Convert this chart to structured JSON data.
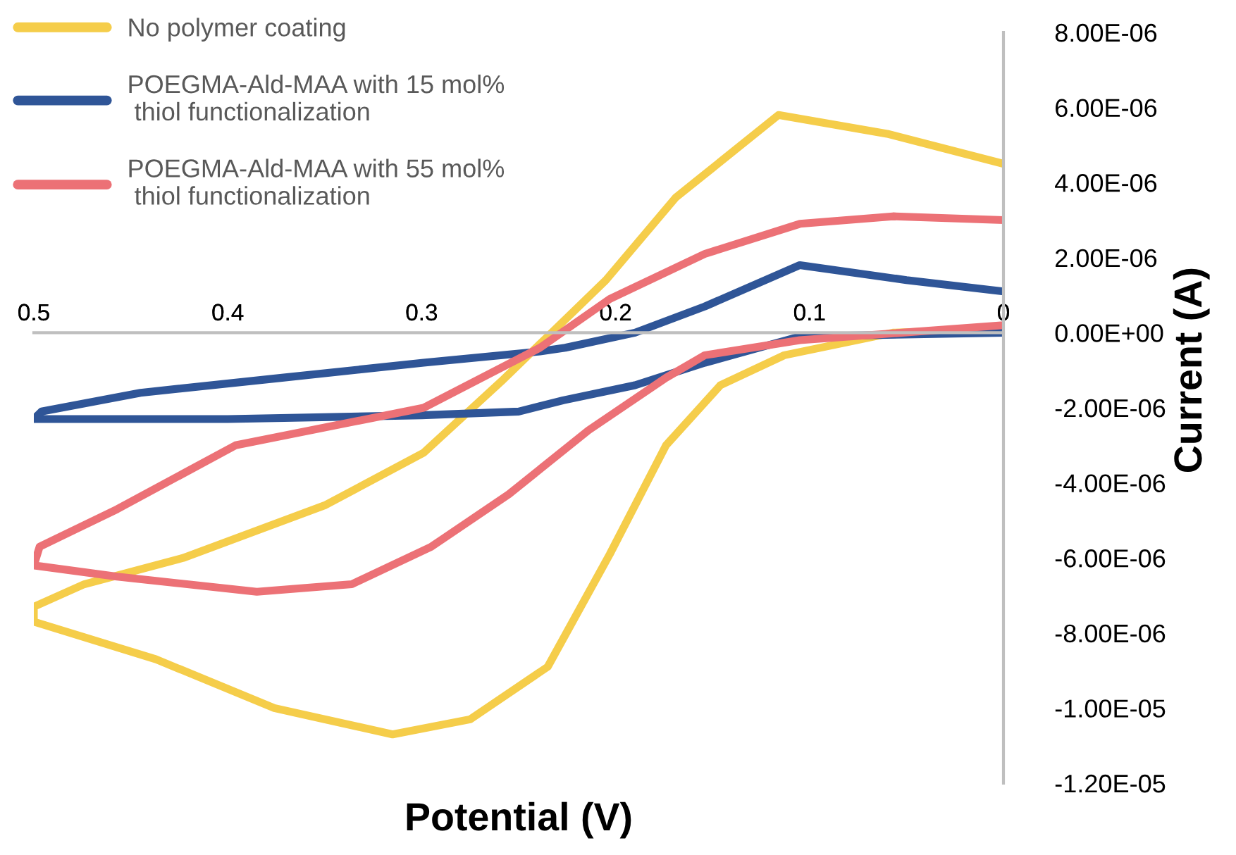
{
  "chart_data": {
    "type": "line",
    "xlabel": "Potential (V)",
    "ylabel": "Current (A)",
    "xlim": [
      0.5,
      0
    ],
    "ylim": [
      -1.2e-05,
      8e-06
    ],
    "xticks": [
      0.5,
      0.4,
      0.3,
      0.2,
      0.1,
      0
    ],
    "yticks": [
      {
        "value": 8e-06,
        "label": "8.00E-06"
      },
      {
        "value": 6e-06,
        "label": "6.00E-06"
      },
      {
        "value": 4e-06,
        "label": "4.00E-06"
      },
      {
        "value": 2e-06,
        "label": "2.00E-06"
      },
      {
        "value": 0,
        "label": "0.00E+00"
      },
      {
        "value": -2e-06,
        "label": "-2.00E-06"
      },
      {
        "value": -4e-06,
        "label": "-4.00E-06"
      },
      {
        "value": -6e-06,
        "label": "-6.00E-06"
      },
      {
        "value": -8e-06,
        "label": "-8.00E-06"
      },
      {
        "value": -1e-05,
        "label": "-1.00E-05"
      },
      {
        "value": -1.2e-05,
        "label": "-1.20E-05"
      }
    ],
    "grid": false,
    "legend": "top left",
    "marker": "none",
    "line_style": "solid",
    "series": [
      {
        "name": "No polymer coating",
        "color": "#f5cd4a",
        "x": [
          0,
          0.06,
          0.116,
          0.169,
          0.205,
          0.233,
          0.259,
          0.299,
          0.35,
          0.423,
          0.474,
          0.5,
          0.5,
          0.437,
          0.376,
          0.315,
          0.275,
          0.235,
          0.203,
          0.174,
          0.146,
          0.113,
          0.057,
          0
        ],
        "values": [
          4.5e-06,
          5.3e-06,
          5.8e-06,
          3.6e-06,
          1.4e-06,
          0,
          -1.3e-06,
          -3.2e-06,
          -4.6e-06,
          -6e-06,
          -6.7e-06,
          -7.3e-06,
          -7.7e-06,
          -8.7e-06,
          -1e-05,
          -1.07e-05,
          -1.03e-05,
          -8.9e-06,
          -5.9e-06,
          -3e-06,
          -1.4e-06,
          -6e-07,
          0,
          1e-07
        ]
      },
      {
        "name": "POEGMA-Ald-MAA with 15 mol%\n thiol functionalization",
        "color": "#2f5597",
        "x": [
          0,
          0.05,
          0.105,
          0.154,
          0.19,
          0.226,
          0.239,
          0.299,
          0.372,
          0.445,
          0.496,
          0.5,
          0.45,
          0.4,
          0.3,
          0.25,
          0.227,
          0.19,
          0.154,
          0.105,
          0
        ],
        "values": [
          1.1e-06,
          1.4e-06,
          1.8e-06,
          7e-07,
          0,
          -4e-07,
          -5e-07,
          -8e-07,
          -1.2e-06,
          -1.6e-06,
          -2.1e-06,
          -2.3e-06,
          -2.3e-06,
          -2.3e-06,
          -2.2e-06,
          -2.1e-06,
          -1.8e-06,
          -1.4e-06,
          -8e-07,
          -1e-07,
          0
        ]
      },
      {
        "name": "POEGMA-Ald-MAA with 55 mol%\n thiol functionalization",
        "color": "#ec7176",
        "x": [
          0,
          0.057,
          0.105,
          0.154,
          0.203,
          0.239,
          0.299,
          0.396,
          0.457,
          0.497,
          0.5,
          0.457,
          0.385,
          0.336,
          0.295,
          0.255,
          0.214,
          0.174,
          0.154,
          0.105,
          0
        ],
        "values": [
          3e-06,
          3.1e-06,
          2.9e-06,
          2.1e-06,
          9e-07,
          -4e-07,
          -2e-06,
          -3e-06,
          -4.7e-06,
          -5.7e-06,
          -6.2e-06,
          -6.5e-06,
          -6.9e-06,
          -6.7e-06,
          -5.7e-06,
          -4.3e-06,
          -2.6e-06,
          -1.2e-06,
          -6e-07,
          -2e-07,
          2e-07
        ]
      }
    ]
  }
}
